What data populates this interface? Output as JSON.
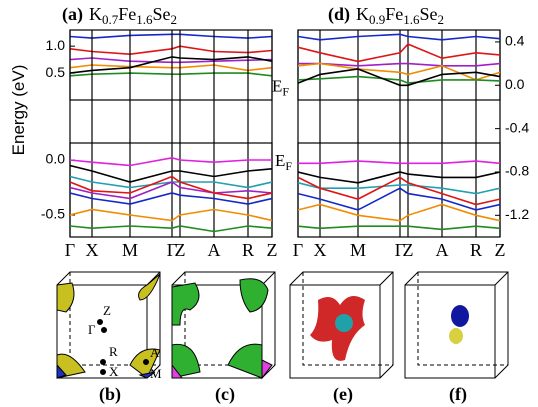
{
  "chart_data": [
    {
      "type": "line",
      "label": "(a)",
      "formula": [
        "K",
        "0.7",
        "Fe",
        "1.6",
        "Se",
        "2"
      ],
      "y_label": "Energy (eV)",
      "x": [
        0,
        22,
        60,
        102,
        110,
        144,
        178,
        202
      ],
      "xlim": [
        0,
        202
      ],
      "ylim": [
        0,
        1.3
      ],
      "yticks": [
        {
          "value": 1,
          "label": "1.0"
        },
        0.5
      ],
      "series": [
        {
          "color": "#1428c8",
          "values": [
            1.18,
            1.15,
            1.2,
            1.22,
            1.22,
            1.18,
            1.15,
            1.18
          ]
        },
        {
          "color": "#e01414",
          "values": [
            0.95,
            0.9,
            0.85,
            0.95,
            1.0,
            0.9,
            0.88,
            0.92
          ]
        },
        {
          "color": "#a020c8",
          "values": [
            0.75,
            0.78,
            0.72,
            0.7,
            0.7,
            0.72,
            0.74,
            0.75
          ]
        },
        {
          "color": "#f08c00",
          "values": [
            0.6,
            0.65,
            0.62,
            0.6,
            0.6,
            0.65,
            0.55,
            0.6
          ]
        },
        {
          "color": "#208a20",
          "values": [
            0.45,
            0.48,
            0.5,
            0.48,
            0.48,
            0.5,
            0.5,
            0.45
          ]
        },
        {
          "color": "#000000",
          "values": [
            0.5,
            0.55,
            0.6,
            0.8,
            0.78,
            0.75,
            0.8,
            0.72
          ]
        }
      ]
    },
    {
      "type": "line",
      "annotation": [
        "E",
        "F"
      ],
      "x": [
        0,
        22,
        60,
        102,
        110,
        144,
        178,
        202
      ],
      "xlim": [
        0,
        202
      ],
      "ylim": [
        -0.7,
        0.155
      ],
      "yticks": [
        {
          "value": 0,
          "label": "0.0"
        },
        -0.5
      ],
      "xticks": [
        {
          "value": 0,
          "label": "Γ"
        },
        {
          "value": 22,
          "label": "X"
        },
        {
          "value": 60,
          "label": "M"
        },
        {
          "value": 102,
          "label": "Γ"
        },
        {
          "value": 110,
          "label": "Z"
        },
        {
          "value": 144,
          "label": "A"
        },
        {
          "value": 178,
          "label": "R"
        },
        {
          "value": 202,
          "label": "Z"
        }
      ],
      "series": [
        {
          "color": "#e020e0",
          "values": [
            0.0,
            -0.02,
            -0.05,
            0.02,
            0.0,
            -0.02,
            0.0,
            0.0
          ]
        },
        {
          "color": "#000000",
          "values": [
            -0.05,
            -0.1,
            -0.2,
            -0.1,
            -0.1,
            -0.15,
            -0.1,
            -0.08
          ]
        },
        {
          "color": "#20a0b0",
          "values": [
            -0.15,
            -0.2,
            -0.25,
            -0.2,
            -0.2,
            -0.2,
            -0.25,
            -0.2
          ]
        },
        {
          "color": "#a020c8",
          "values": [
            -0.25,
            -0.3,
            -0.35,
            -0.2,
            -0.25,
            -0.3,
            -0.28,
            -0.3
          ]
        },
        {
          "color": "#e01414",
          "values": [
            -0.2,
            -0.28,
            -0.3,
            -0.15,
            -0.2,
            -0.3,
            -0.35,
            -0.3
          ]
        },
        {
          "color": "#1428c8",
          "values": [
            -0.3,
            -0.35,
            -0.4,
            -0.3,
            -0.32,
            -0.35,
            -0.4,
            -0.35
          ]
        },
        {
          "color": "#f08c00",
          "values": [
            -0.5,
            -0.45,
            -0.5,
            -0.55,
            -0.5,
            -0.45,
            -0.5,
            -0.55
          ]
        },
        {
          "color": "#208a20",
          "values": [
            -0.6,
            -0.62,
            -0.6,
            -0.62,
            -0.6,
            -0.65,
            -0.6,
            -0.62
          ]
        }
      ]
    },
    {
      "type": "line",
      "label": "(d)",
      "formula": [
        "K",
        "0.9",
        "Fe",
        "1.6",
        "Se",
        "2"
      ],
      "annotation": [
        "E",
        "F"
      ],
      "x": [
        0,
        22,
        60,
        102,
        110,
        144,
        178,
        202
      ],
      "xlim": [
        0,
        202
      ],
      "ylim": [
        -1.4,
        0.51
      ],
      "yticks": [
        0.4,
        {
          "value": 0,
          "label": "0.0"
        },
        -0.4,
        -0.8,
        -1.2
      ],
      "xticks": [
        {
          "value": 0,
          "label": "Γ"
        },
        {
          "value": 22,
          "label": "X"
        },
        {
          "value": 60,
          "label": "M"
        },
        {
          "value": 102,
          "label": "Γ"
        },
        {
          "value": 110,
          "label": "Z"
        },
        {
          "value": 144,
          "label": "A"
        },
        {
          "value": 178,
          "label": "R"
        },
        {
          "value": 202,
          "label": "Z"
        }
      ],
      "series": [
        {
          "color": "#1428c8",
          "values": [
            0.45,
            0.42,
            0.45,
            0.47,
            0.45,
            0.42,
            0.45,
            0.43
          ]
        },
        {
          "color": "#e01414",
          "values": [
            0.35,
            0.3,
            0.22,
            0.3,
            0.38,
            0.25,
            0.3,
            0.28
          ]
        },
        {
          "color": "#a020c8",
          "values": [
            0.2,
            0.2,
            0.18,
            0.2,
            0.2,
            0.18,
            0.18,
            0.2
          ]
        },
        {
          "color": "#f08c00",
          "values": [
            0.18,
            0.2,
            0.15,
            0.12,
            0.1,
            0.18,
            0.05,
            0.12
          ]
        },
        {
          "color": "#208a20",
          "values": [
            0.05,
            0.06,
            0.08,
            0.05,
            0.02,
            0.05,
            0.05,
            0.04
          ]
        },
        {
          "color": "#000000",
          "values": [
            0.02,
            0.1,
            0.15,
            0.0,
            0.0,
            0.1,
            0.12,
            0.08
          ]
        },
        {
          "color": "#e020e0",
          "values": [
            -0.72,
            -0.72,
            -0.7,
            -0.72,
            -0.72,
            -0.72,
            -0.7,
            -0.72
          ]
        },
        {
          "color": "#000000",
          "values": [
            -0.8,
            -0.85,
            -0.9,
            -0.8,
            -0.82,
            -0.85,
            -0.85,
            -0.8
          ]
        },
        {
          "color": "#20a0b0",
          "values": [
            -0.9,
            -0.95,
            -0.95,
            -0.92,
            -0.92,
            -0.95,
            -1.0,
            -0.95
          ]
        },
        {
          "color": "#e01414",
          "values": [
            -0.85,
            -0.95,
            -1.05,
            -0.85,
            -0.9,
            -1.0,
            -1.1,
            -1.05
          ]
        },
        {
          "color": "#1428c8",
          "values": [
            -1.0,
            -1.05,
            -1.15,
            -0.95,
            -1.0,
            -1.05,
            -1.15,
            -1.1
          ]
        },
        {
          "color": "#f08c00",
          "values": [
            -1.15,
            -1.1,
            -1.2,
            -1.25,
            -1.2,
            -1.1,
            -1.2,
            -1.25
          ]
        },
        {
          "color": "#208a20",
          "values": [
            -1.3,
            -1.32,
            -1.3,
            -1.3,
            -1.3,
            -1.33,
            -1.3,
            -1.32
          ]
        }
      ]
    }
  ],
  "fermi_panels": {
    "labels": [
      "(b)",
      "(c)",
      "(e)",
      "(f)"
    ],
    "b_points": [
      "Z",
      "Γ",
      "R",
      "X",
      "A",
      "M"
    ]
  }
}
